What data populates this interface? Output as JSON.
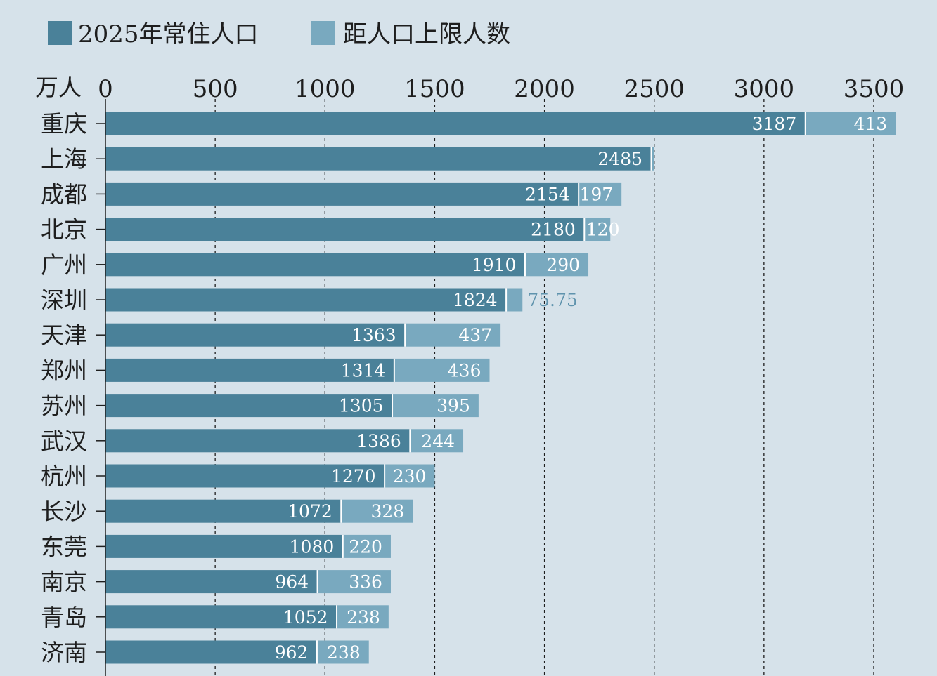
{
  "chart_data": {
    "type": "bar",
    "orientation": "horizontal",
    "stacked": true,
    "unit_label": "万人",
    "xlim": [
      0,
      3500
    ],
    "xticks": [
      0,
      500,
      1000,
      1500,
      2000,
      2500,
      3000,
      3500
    ],
    "grid": "dashed vertical",
    "legend_position": "top-left",
    "categories": [
      "重庆",
      "上海",
      "成都",
      "北京",
      "广州",
      "深圳",
      "天津",
      "郑州",
      "苏州",
      "武汉",
      "杭州",
      "长沙",
      "东莞",
      "南京",
      "青岛",
      "济南"
    ],
    "series": [
      {
        "name": "2025年常住人口",
        "color": "#4a8199",
        "values": [
          3187,
          2485,
          2154,
          2180,
          1910,
          1824,
          1363,
          1314,
          1305,
          1386,
          1270,
          1072,
          1080,
          964,
          1052,
          962
        ],
        "labels": [
          "3187",
          "2485",
          "2154",
          "2180",
          "1910",
          "1824",
          "1363",
          "1314",
          "1305",
          "1386",
          "1270",
          "1072",
          "1080",
          "964",
          "1052",
          "962"
        ]
      },
      {
        "name": "距人口上限人数",
        "color": "#79a9bf",
        "values": [
          413,
          15,
          197,
          120,
          290,
          75.75,
          437,
          436,
          395,
          244,
          230,
          328,
          220,
          336,
          238,
          238
        ],
        "labels": [
          "413",
          "",
          "197",
          "120",
          "290",
          "75.75",
          "437",
          "436",
          "395",
          "244",
          "230",
          "328",
          "220",
          "336",
          "238",
          "238"
        ]
      }
    ]
  }
}
